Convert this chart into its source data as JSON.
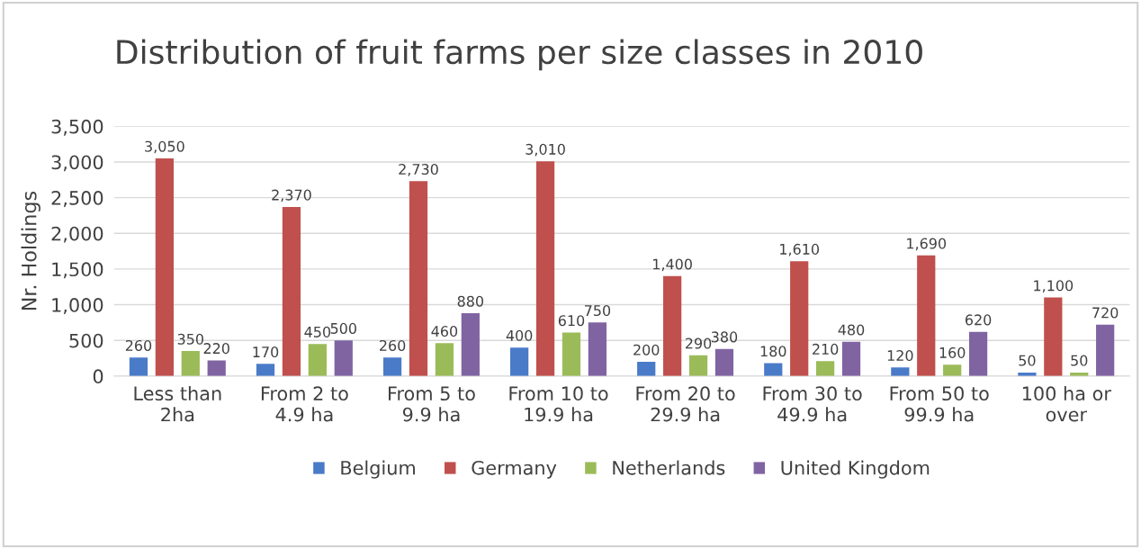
{
  "chart_data": {
    "type": "bar",
    "title": "Distribution of fruit farms per size classes in 2010",
    "ylabel": "Nr. Holdings",
    "categories": [
      "Less than\n2ha",
      "From 2 to\n4.9 ha",
      "From 5 to\n9.9 ha",
      "From 10 to\n19.9 ha",
      "From 20 to\n29.9 ha",
      "From 30 to\n49.9 ha",
      "From 50 to\n99.9 ha",
      "100 ha or\nover"
    ],
    "series": [
      {
        "name": "Belgium",
        "color": "#4a7bc8",
        "values": [
          260,
          170,
          260,
          400,
          200,
          180,
          120,
          50
        ],
        "value_labels": [
          "260",
          "170",
          "260",
          "400",
          "200",
          "180",
          "120",
          "50"
        ]
      },
      {
        "name": "Germany",
        "color": "#c0504d",
        "values": [
          3050,
          2370,
          2730,
          3010,
          1400,
          1610,
          1690,
          1100
        ],
        "value_labels": [
          "3,050",
          "2,370",
          "2,730",
          "3,010",
          "1,400",
          "1,610",
          "1,690",
          "1,100"
        ]
      },
      {
        "name": "Netherlands",
        "color": "#9bbb59",
        "values": [
          350,
          450,
          460,
          610,
          290,
          210,
          160,
          50
        ],
        "value_labels": [
          "350",
          "450",
          "460",
          "610",
          "290",
          "210",
          "160",
          "50"
        ]
      },
      {
        "name": "United Kingdom",
        "color": "#8064a2",
        "values": [
          220,
          500,
          880,
          750,
          380,
          480,
          620,
          720
        ],
        "value_labels": [
          "220",
          "500",
          "880",
          "750",
          "380",
          "480",
          "620",
          "720"
        ]
      }
    ],
    "ylim": [
      0,
      3500
    ],
    "yticks": [
      0,
      {
        "value": 500,
        "label": "500"
      },
      {
        "value": 1000,
        "label": "1,000"
      },
      {
        "value": 1500,
        "label": "1,500"
      },
      {
        "value": 2000,
        "label": "2,000"
      },
      {
        "value": 2500,
        "label": "2,500"
      },
      {
        "value": 3000,
        "label": "3,000"
      },
      {
        "value": 3500,
        "label": "3,500"
      }
    ],
    "grid": "y",
    "legend": "bottom"
  }
}
